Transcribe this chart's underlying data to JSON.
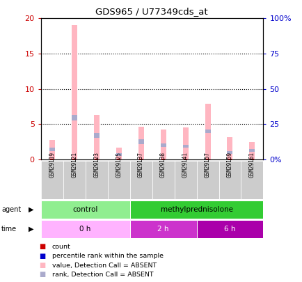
{
  "title": "GDS965 / U77349cds_at",
  "samples": [
    "GSM29119",
    "GSM29121",
    "GSM29123",
    "GSM29125",
    "GSM29137",
    "GSM29138",
    "GSM29141",
    "GSM29157",
    "GSM29159",
    "GSM29161"
  ],
  "pink_bars": [
    2.7,
    19.0,
    6.3,
    1.7,
    4.6,
    4.2,
    4.5,
    7.9,
    3.1,
    2.5
  ],
  "blue_bars_bottom": [
    1.2,
    5.5,
    3.0,
    0.5,
    2.2,
    1.8,
    1.7,
    3.7,
    0.8,
    1.1
  ],
  "blue_bars_height": [
    0.5,
    0.8,
    0.7,
    0.35,
    0.6,
    0.45,
    0.4,
    0.55,
    0.35,
    0.4
  ],
  "red_tick_height": [
    0.12,
    0.12,
    0.12,
    0.12,
    0.12,
    0.12,
    0.12,
    0.12,
    0.12,
    0.12
  ],
  "ylim_left": [
    0,
    20
  ],
  "ylim_right": [
    0,
    100
  ],
  "yticks_left": [
    0,
    5,
    10,
    15,
    20
  ],
  "yticks_right": [
    0,
    25,
    50,
    75,
    100
  ],
  "ytick_labels_left": [
    "0",
    "5",
    "10",
    "15",
    "20"
  ],
  "ytick_labels_right": [
    "0%",
    "25",
    "50",
    "75",
    "100%"
  ],
  "agent_groups": [
    {
      "label": "control",
      "start": 0,
      "end": 4,
      "color": "#90EE90"
    },
    {
      "label": "methylprednisolone",
      "start": 4,
      "end": 10,
      "color": "#33CC33"
    }
  ],
  "time_groups": [
    {
      "label": "0 h",
      "start": 0,
      "end": 4,
      "color": "#FFB3FF"
    },
    {
      "label": "2 h",
      "start": 4,
      "end": 7,
      "color": "#CC33CC"
    },
    {
      "label": "6 h",
      "start": 7,
      "end": 10,
      "color": "#AA00AA"
    }
  ],
  "legend_items": [
    {
      "label": "count",
      "color": "#CC0000"
    },
    {
      "label": "percentile rank within the sample",
      "color": "#0000CC"
    },
    {
      "label": "value, Detection Call = ABSENT",
      "color": "#FFB6C1"
    },
    {
      "label": "rank, Detection Call = ABSENT",
      "color": "#AAAACC"
    }
  ],
  "bar_width": 0.25,
  "pink_color": "#FFB6C1",
  "blue_color": "#AAAACC",
  "red_color": "#CC0000",
  "dark_blue_color": "#0000CC",
  "left_axis_color": "#CC0000",
  "right_axis_color": "#0000CC",
  "plot_bg": "#FFFFFF",
  "tick_label_bg": "#CCCCCC"
}
